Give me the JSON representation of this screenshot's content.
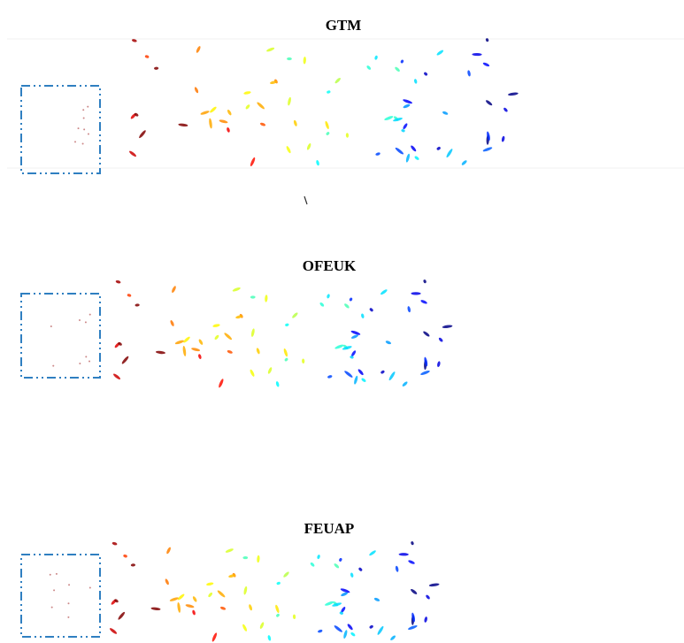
{
  "panels": [
    {
      "title": "GTM"
    },
    {
      "title": "OFEUK"
    },
    {
      "title": "FEUAP"
    }
  ]
}
